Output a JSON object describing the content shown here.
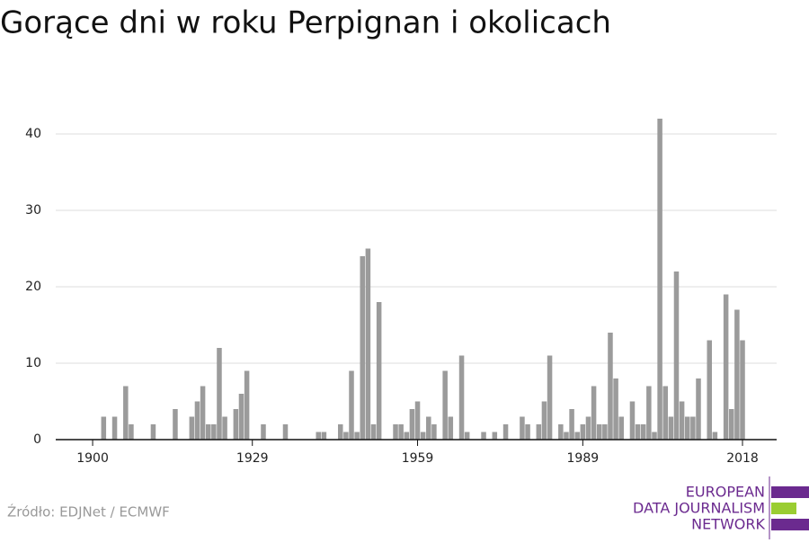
{
  "chart_data": {
    "type": "bar",
    "title": "Gorące dni w roku Perpignan i okolicach",
    "source": "Źródło: EDJNet / ECMWF",
    "logo": [
      "EUROPEAN",
      "DATA JOURNALISM",
      "NETWORK"
    ],
    "color": "#9b9b9b",
    "grid": true,
    "x": [
      1900,
      1901,
      1902,
      1903,
      1904,
      1905,
      1906,
      1907,
      1908,
      1909,
      1910,
      1911,
      1912,
      1913,
      1914,
      1915,
      1916,
      1917,
      1918,
      1919,
      1920,
      1921,
      1922,
      1923,
      1924,
      1925,
      1926,
      1927,
      1928,
      1929,
      1930,
      1931,
      1932,
      1933,
      1934,
      1935,
      1936,
      1937,
      1938,
      1939,
      1940,
      1941,
      1942,
      1943,
      1944,
      1945,
      1946,
      1947,
      1948,
      1949,
      1950,
      1951,
      1952,
      1953,
      1954,
      1955,
      1956,
      1957,
      1958,
      1959,
      1960,
      1961,
      1962,
      1963,
      1964,
      1965,
      1966,
      1967,
      1968,
      1969,
      1970,
      1971,
      1972,
      1973,
      1974,
      1975,
      1976,
      1977,
      1978,
      1979,
      1980,
      1981,
      1982,
      1983,
      1984,
      1985,
      1986,
      1987,
      1988,
      1989,
      1990,
      1991,
      1992,
      1993,
      1994,
      1995,
      1996,
      1997,
      1998,
      1999,
      2000,
      2001,
      2002,
      2003,
      2004,
      2005,
      2006,
      2007,
      2008,
      2009,
      2010,
      2011,
      2012,
      2013,
      2014,
      2015,
      2016,
      2017,
      2018
    ],
    "values": [
      0,
      0,
      3,
      0,
      3,
      0,
      7,
      2,
      0,
      0,
      0,
      2,
      0,
      0,
      0,
      4,
      0,
      0,
      3,
      5,
      7,
      2,
      2,
      12,
      3,
      0,
      4,
      6,
      9,
      0,
      0,
      2,
      0,
      0,
      0,
      2,
      0,
      0,
      0,
      0,
      0,
      1,
      1,
      0,
      0,
      2,
      1,
      9,
      1,
      24,
      25,
      2,
      18,
      0,
      0,
      2,
      2,
      1,
      4,
      5,
      1,
      3,
      2,
      0,
      9,
      3,
      0,
      11,
      1,
      0,
      0,
      1,
      0,
      1,
      0,
      2,
      0,
      0,
      3,
      2,
      0,
      2,
      5,
      11,
      0,
      2,
      1,
      4,
      1,
      2,
      3,
      7,
      2,
      2,
      14,
      8,
      3,
      0,
      5,
      2,
      2,
      7,
      1,
      42,
      7,
      3,
      22,
      5,
      3,
      3,
      8,
      0,
      13,
      1,
      0,
      19,
      4,
      17,
      13
    ],
    "xlim": [
      1893.3,
      2024.2
    ],
    "xticks": [
      1900,
      1929,
      1959,
      1989,
      2018
    ],
    "ylim": [
      0,
      45
    ],
    "yticks": [
      0,
      10,
      20,
      30,
      40
    ]
  }
}
